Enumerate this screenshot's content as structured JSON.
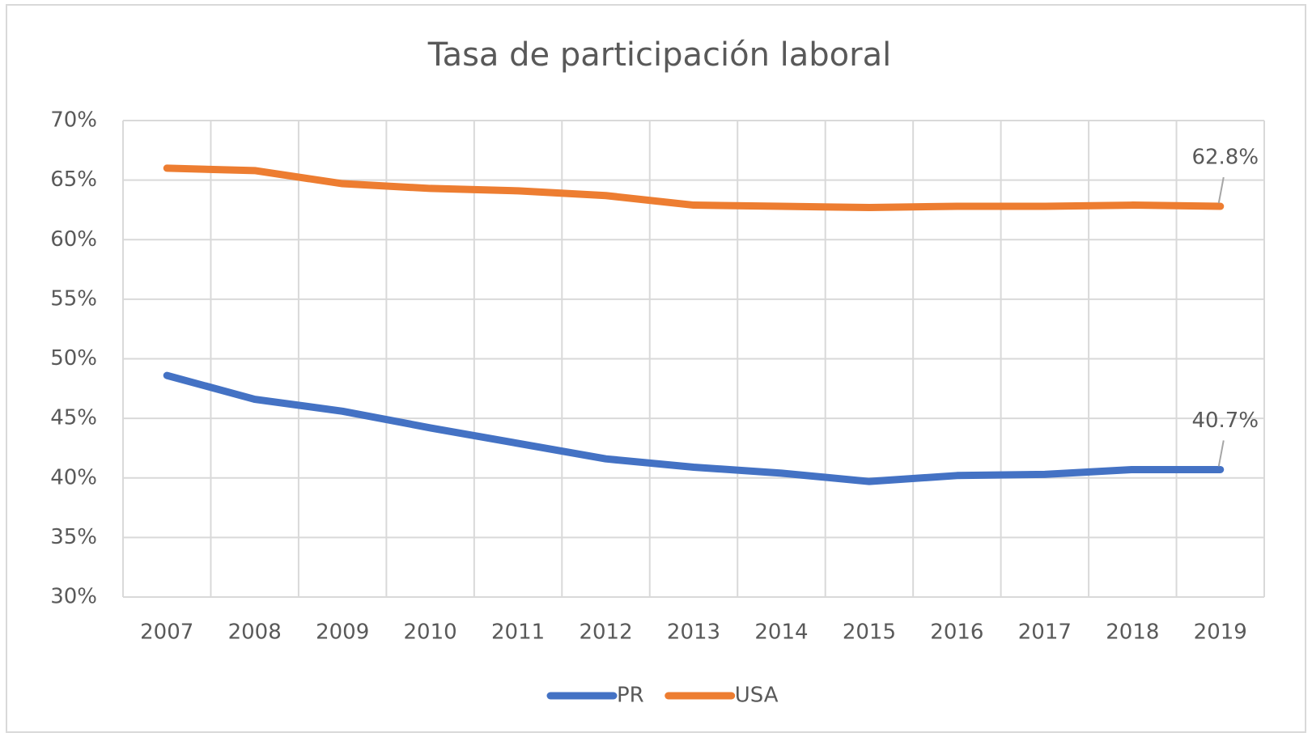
{
  "chart_data": {
    "type": "line",
    "title": "Tasa de participación laboral",
    "categories": [
      "2007",
      "2008",
      "2009",
      "2010",
      "2011",
      "2012",
      "2013",
      "2014",
      "2015",
      "2016",
      "2017",
      "2018",
      "2019"
    ],
    "series": [
      {
        "name": "PR",
        "color": "#4472c4",
        "values": [
          48.6,
          46.6,
          45.6,
          44.2,
          42.9,
          41.6,
          40.9,
          40.4,
          39.7,
          40.2,
          40.3,
          40.7,
          40.7
        ],
        "value_labels": [
          null,
          null,
          null,
          null,
          null,
          null,
          null,
          null,
          null,
          null,
          null,
          null,
          "40.7%"
        ]
      },
      {
        "name": "USA",
        "color": "#ed7d31",
        "values": [
          66.0,
          65.8,
          64.7,
          64.3,
          64.1,
          63.7,
          62.9,
          62.8,
          62.7,
          62.8,
          62.8,
          62.9,
          62.8
        ],
        "value_labels": [
          null,
          null,
          null,
          null,
          null,
          null,
          null,
          null,
          null,
          null,
          null,
          null,
          "62.8%"
        ]
      }
    ],
    "ylim": [
      30,
      70
    ],
    "yticks": [
      {
        "value": 30,
        "label": "30%"
      },
      {
        "value": 35,
        "label": "35%"
      },
      {
        "value": 40,
        "label": "40%"
      },
      {
        "value": 45,
        "label": "45%"
      },
      {
        "value": 50,
        "label": "50%"
      },
      {
        "value": 55,
        "label": "55%"
      },
      {
        "value": 60,
        "label": "60%"
      },
      {
        "value": 65,
        "label": "65%"
      },
      {
        "value": 70,
        "label": "70%"
      }
    ],
    "grid": true,
    "legend": "bottom"
  }
}
